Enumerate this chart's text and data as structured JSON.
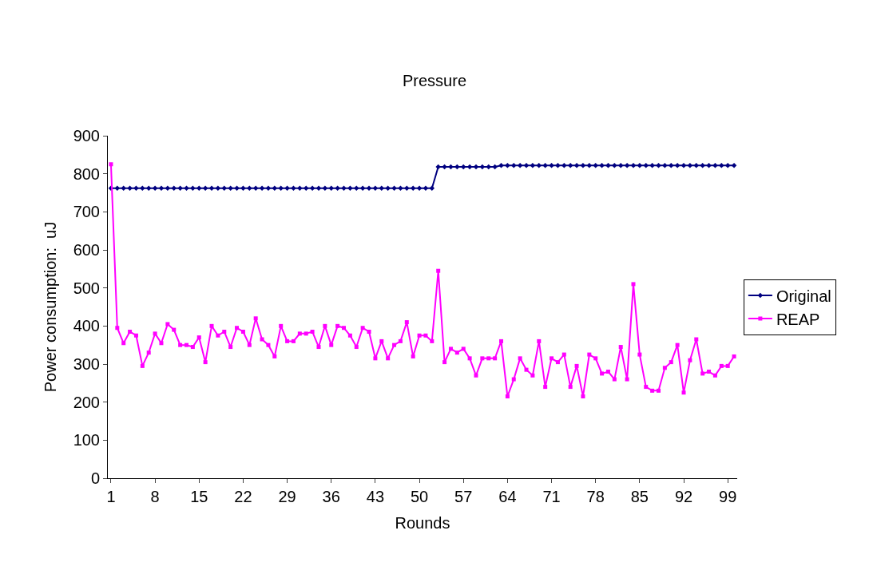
{
  "chart_data": {
    "type": "line",
    "title": "Pressure",
    "xlabel": "Rounds",
    "ylabel": "Power consumption:  uJ",
    "categories": [
      "1",
      null,
      null,
      null,
      null,
      null,
      null,
      "8",
      null,
      null,
      null,
      null,
      null,
      null,
      "15",
      null,
      null,
      null,
      null,
      null,
      null,
      "22",
      null,
      null,
      null,
      null,
      null,
      null,
      "29",
      null,
      null,
      null,
      null,
      null,
      null,
      "36",
      null,
      null,
      null,
      null,
      null,
      null,
      "43",
      null,
      null,
      null,
      null,
      null,
      null,
      "50",
      null,
      null,
      null,
      null,
      null,
      null,
      "57",
      null,
      null,
      null,
      null,
      null,
      null,
      "64",
      null,
      null,
      null,
      null,
      null,
      null,
      "71",
      null,
      null,
      null,
      null,
      null,
      null,
      "78",
      null,
      null,
      null,
      null,
      null,
      null,
      "85",
      null,
      null,
      null,
      null,
      null,
      null,
      "92",
      null,
      null,
      null,
      null,
      null,
      null,
      "99",
      null
    ],
    "series": [
      {
        "name": "Original",
        "color": "#000080",
        "marker": "diamond",
        "values": [
          762,
          762,
          762,
          762,
          762,
          762,
          762,
          762,
          762,
          762,
          762,
          762,
          762,
          762,
          762,
          762,
          762,
          762,
          762,
          762,
          762,
          762,
          762,
          762,
          762,
          762,
          762,
          762,
          762,
          762,
          762,
          762,
          762,
          762,
          762,
          762,
          762,
          762,
          762,
          762,
          762,
          762,
          762,
          762,
          762,
          762,
          762,
          762,
          762,
          762,
          762,
          762,
          818,
          818,
          818,
          818,
          818,
          818,
          818,
          818,
          818,
          818,
          822,
          822,
          822,
          822,
          822,
          822,
          822,
          822,
          822,
          822,
          822,
          822,
          822,
          822,
          822,
          822,
          822,
          822,
          822,
          822,
          822,
          822,
          822,
          822,
          822,
          822,
          822,
          822,
          822,
          822,
          822,
          822,
          822,
          822,
          822,
          822,
          822,
          822
        ]
      },
      {
        "name": "REAP",
        "color": "#ff00ff",
        "marker": "square",
        "values": [
          825,
          395,
          355,
          385,
          375,
          295,
          330,
          380,
          355,
          405,
          390,
          350,
          350,
          345,
          370,
          305,
          400,
          375,
          385,
          345,
          395,
          385,
          350,
          420,
          365,
          350,
          320,
          400,
          360,
          360,
          380,
          380,
          385,
          345,
          400,
          350,
          400,
          395,
          375,
          345,
          395,
          385,
          315,
          360,
          315,
          350,
          360,
          410,
          320,
          375,
          375,
          360,
          545,
          305,
          340,
          330,
          340,
          315,
          270,
          315,
          315,
          315,
          360,
          215,
          260,
          315,
          285,
          270,
          360,
          240,
          315,
          305,
          325,
          240,
          295,
          215,
          325,
          315,
          275,
          280,
          260,
          345,
          260,
          510,
          325,
          240,
          230,
          230,
          290,
          305,
          350,
          225,
          310,
          365,
          275,
          280,
          270,
          295,
          295,
          320
        ]
      }
    ],
    "ylim": [
      0,
      900
    ],
    "yticks": [
      0,
      100,
      200,
      300,
      400,
      500,
      600,
      700,
      800,
      900
    ],
    "legend": "right",
    "line_style": "solid"
  }
}
